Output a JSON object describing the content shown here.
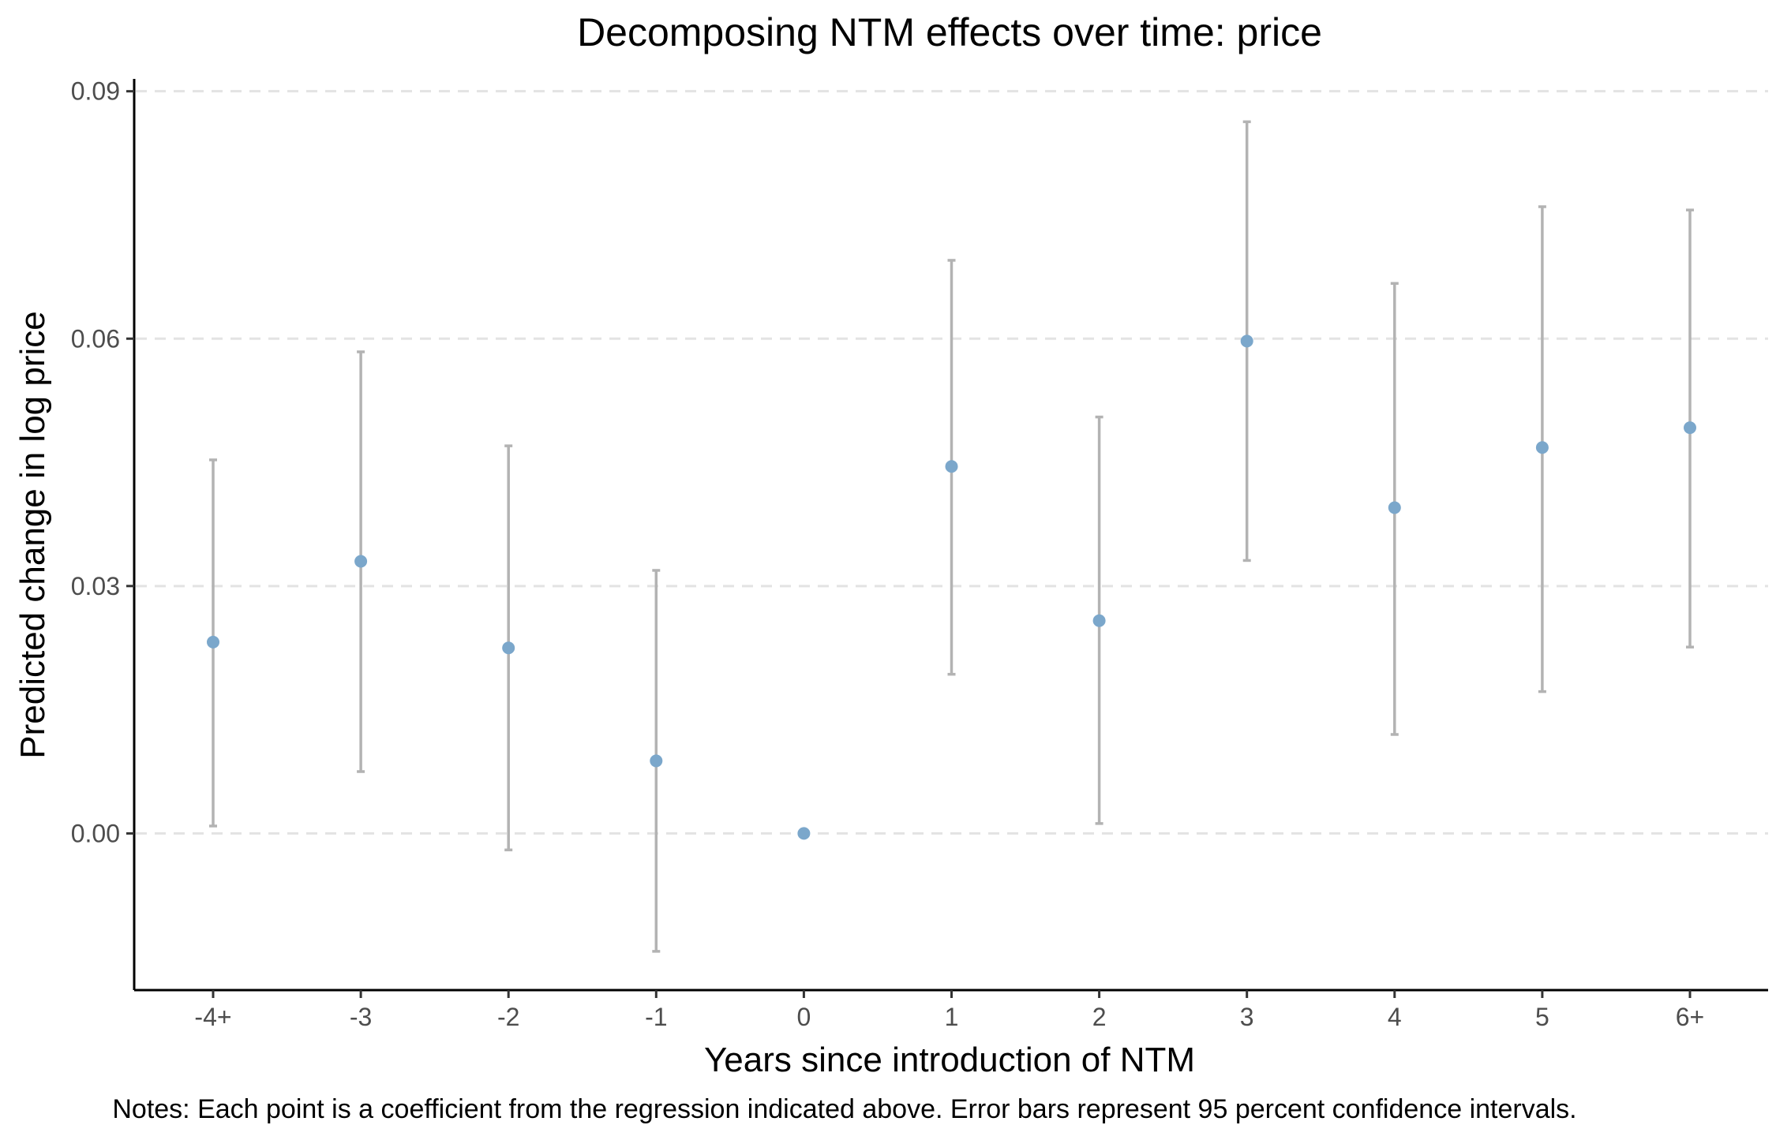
{
  "chart_data": {
    "type": "scatter",
    "title": "Decomposing NTM effects over time: price",
    "xlabel": "Years since introduction of NTM",
    "ylabel": "Predicted change in log price",
    "note": "Notes: Each point is a coefficient from the regression indicated above. Error bars represent 95 percent confidence intervals.",
    "categories": [
      "-4+",
      "-3",
      "-2",
      "-1",
      "0",
      "1",
      "2",
      "3",
      "4",
      "5",
      "6+"
    ],
    "estimate": [
      0.0232,
      0.033,
      0.0225,
      0.0088,
      0.0,
      0.0445,
      0.0258,
      0.0597,
      0.0395,
      0.0468,
      0.0492
    ],
    "ci_lower": [
      0.0009,
      0.0075,
      -0.002,
      -0.0143,
      null,
      0.0193,
      0.0012,
      0.0331,
      0.012,
      0.0172,
      0.0226
    ],
    "ci_upper": [
      0.0453,
      0.0584,
      0.047,
      0.0319,
      null,
      0.0695,
      0.0505,
      0.0863,
      0.0667,
      0.076,
      0.0756
    ],
    "yticks": [
      0.0,
      0.03,
      0.06,
      0.09
    ],
    "ytick_labels": [
      "0.00",
      "0.03",
      "0.06",
      "0.09"
    ],
    "ylim": [
      -0.019,
      0.0915
    ],
    "grid": "horizontal dashed at major y ticks",
    "legend": "none",
    "colors": {
      "point": "#7BA7CB",
      "errorbar": "#B3B3B3",
      "grid": "#E3E3E3",
      "axis": "#000000",
      "tick_label": "#4D4D4D",
      "title": "#000000"
    }
  }
}
